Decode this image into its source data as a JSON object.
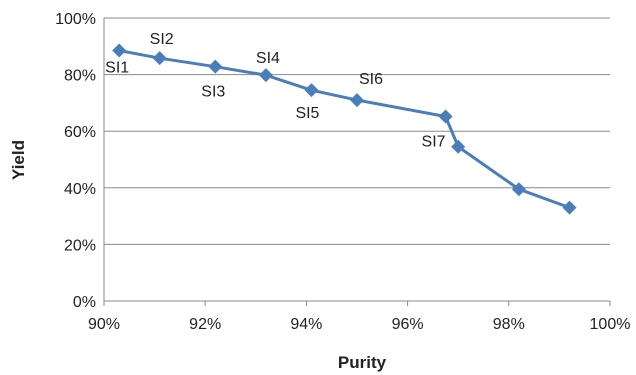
{
  "chart_data": {
    "type": "line",
    "title": "",
    "xlabel": "Purity",
    "ylabel": "Yield",
    "xlim": [
      90,
      100
    ],
    "ylim": [
      0,
      100
    ],
    "x_ticks": [
      "90%",
      "92%",
      "94%",
      "96%",
      "98%",
      "100%"
    ],
    "y_ticks": [
      "0%",
      "20%",
      "40%",
      "60%",
      "80%",
      "100%"
    ],
    "grid": "horizontal",
    "legend": "none",
    "series": [
      {
        "color": "#4a7ebb",
        "marker": "diamond",
        "points": [
          {
            "x": 90.3,
            "y": 88.5,
            "label": "SI1"
          },
          {
            "x": 91.1,
            "y": 85.8,
            "label": "SI2"
          },
          {
            "x": 92.2,
            "y": 82.8,
            "label": "SI3"
          },
          {
            "x": 93.2,
            "y": 79.8,
            "label": "SI4"
          },
          {
            "x": 94.1,
            "y": 74.5,
            "label": "SI5"
          },
          {
            "x": 95.0,
            "y": 71.0,
            "label": "SI6"
          },
          {
            "x": 96.75,
            "y": 65.2,
            "label": "SI7"
          },
          {
            "x": 97.0,
            "y": 54.5,
            "label": ""
          },
          {
            "x": 98.2,
            "y": 39.5,
            "label": ""
          },
          {
            "x": 99.2,
            "y": 33.0,
            "label": ""
          }
        ]
      }
    ]
  }
}
